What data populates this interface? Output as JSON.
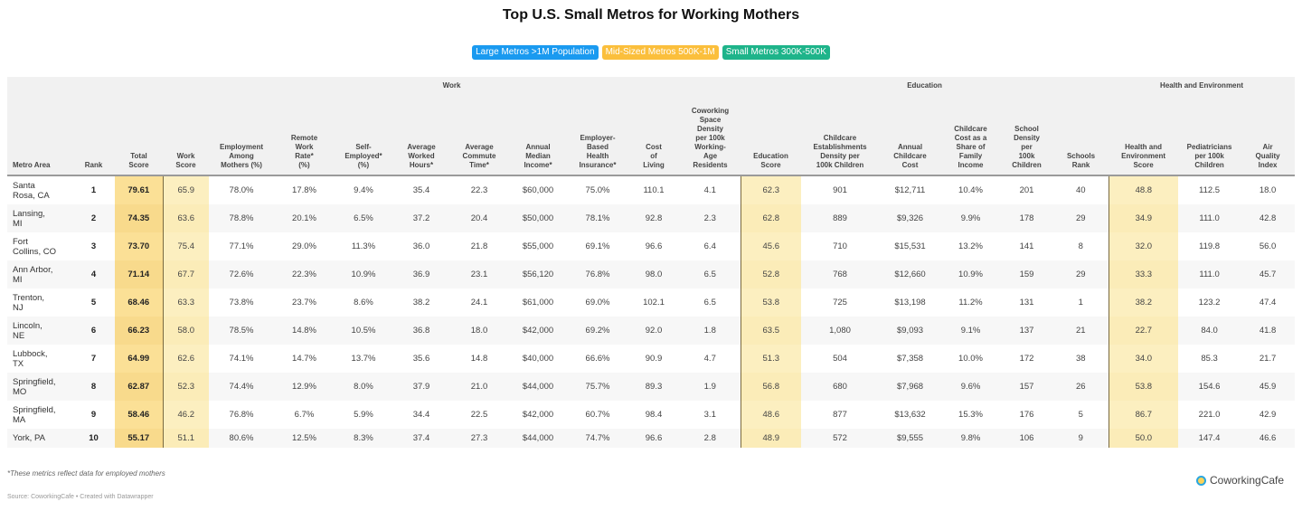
{
  "title": "Top U.S. Small Metros for Working Mothers",
  "legend": [
    {
      "label": "Large Metros >1M Population",
      "color": "#1a9af0"
    },
    {
      "label": "Mid-Sized Metros 500K-1M",
      "color": "#fbbf3c"
    },
    {
      "label": "Small Metros 300K-500K",
      "color": "#1eb48a"
    }
  ],
  "colors": {
    "total_score_highlight": "#fbe096",
    "sub_score_highlight": "#fcefc0",
    "header_bg": "#f1f1f1"
  },
  "chart_data": {
    "type": "table",
    "title": "Top U.S. Small Metros for Working Mothers",
    "groups": [
      {
        "label": "",
        "span": 3
      },
      {
        "label": "Work",
        "span": 10
      },
      {
        "label": "Education",
        "span": 6
      },
      {
        "label": "Health and Environment",
        "span": 3
      }
    ],
    "columns": [
      "Metro Area",
      "Rank",
      "Total\nScore",
      "Work\nScore",
      "Employment\nAmong\nMothers (%)",
      "Remote\nWork\nRate*\n(%)",
      "Self-\nEmployed*\n(%)",
      "Average\nWorked\nHours*",
      "Average\nCommute\nTime*",
      "Annual\nMedian\nIncome*",
      "Employer-\nBased\nHealth\nInsurance*",
      "Cost\nof\nLiving",
      "Coworking\nSpace\nDensity\nper 100k\nWorking-\nAge\nResidents",
      "Education\nScore",
      "Childcare\nEstablishments\nDensity per\n100k Children",
      "Annual\nChildcare\nCost",
      "Childcare\nCost as a\nShare of\nFamily\nIncome",
      "School\nDensity\nper\n100k\nChildren",
      "Schools\nRank",
      "Health and\nEnvironment\nScore",
      "Pediatricians\nper 100k\nChildren",
      "Air\nQuality\nIndex"
    ],
    "rows": [
      [
        "Santa\nRosa, CA",
        "1",
        "79.61",
        "65.9",
        "78.0%",
        "17.8%",
        "9.4%",
        "35.4",
        "22.3",
        "$60,000",
        "75.0%",
        "110.1",
        "4.1",
        "62.3",
        "901",
        "$12,711",
        "10.4%",
        "201",
        "40",
        "48.8",
        "112.5",
        "18.0"
      ],
      [
        "Lansing,\nMI",
        "2",
        "74.35",
        "63.6",
        "78.8%",
        "20.1%",
        "6.5%",
        "37.2",
        "20.4",
        "$50,000",
        "78.1%",
        "92.8",
        "2.3",
        "62.8",
        "889",
        "$9,326",
        "9.9%",
        "178",
        "29",
        "34.9",
        "111.0",
        "42.8"
      ],
      [
        "Fort\nCollins, CO",
        "3",
        "73.70",
        "75.4",
        "77.1%",
        "29.0%",
        "11.3%",
        "36.0",
        "21.8",
        "$55,000",
        "69.1%",
        "96.6",
        "6.4",
        "45.6",
        "710",
        "$15,531",
        "13.2%",
        "141",
        "8",
        "32.0",
        "119.8",
        "56.0"
      ],
      [
        "Ann Arbor,\nMI",
        "4",
        "71.14",
        "67.7",
        "72.6%",
        "22.3%",
        "10.9%",
        "36.9",
        "23.1",
        "$56,120",
        "76.8%",
        "98.0",
        "6.5",
        "52.8",
        "768",
        "$12,660",
        "10.9%",
        "159",
        "29",
        "33.3",
        "111.0",
        "45.7"
      ],
      [
        "Trenton,\nNJ",
        "5",
        "68.46",
        "63.3",
        "73.8%",
        "23.7%",
        "8.6%",
        "38.2",
        "24.1",
        "$61,000",
        "69.0%",
        "102.1",
        "6.5",
        "53.8",
        "725",
        "$13,198",
        "11.2%",
        "131",
        "1",
        "38.2",
        "123.2",
        "47.4"
      ],
      [
        "Lincoln,\nNE",
        "6",
        "66.23",
        "58.0",
        "78.5%",
        "14.8%",
        "10.5%",
        "36.8",
        "18.0",
        "$42,000",
        "69.2%",
        "92.0",
        "1.8",
        "63.5",
        "1,080",
        "$9,093",
        "9.1%",
        "137",
        "21",
        "22.7",
        "84.0",
        "41.8"
      ],
      [
        "Lubbock,\nTX",
        "7",
        "64.99",
        "62.6",
        "74.1%",
        "14.7%",
        "13.7%",
        "35.6",
        "14.8",
        "$40,000",
        "66.6%",
        "90.9",
        "4.7",
        "51.3",
        "504",
        "$7,358",
        "10.0%",
        "172",
        "38",
        "34.0",
        "85.3",
        "21.7"
      ],
      [
        "Springfield,\nMO",
        "8",
        "62.87",
        "52.3",
        "74.4%",
        "12.9%",
        "8.0%",
        "37.9",
        "21.0",
        "$44,000",
        "75.7%",
        "89.3",
        "1.9",
        "56.8",
        "680",
        "$7,968",
        "9.6%",
        "157",
        "26",
        "53.8",
        "154.6",
        "45.9"
      ],
      [
        "Springfield,\nMA",
        "9",
        "58.46",
        "46.2",
        "76.8%",
        "6.7%",
        "5.9%",
        "34.4",
        "22.5",
        "$42,000",
        "60.7%",
        "98.4",
        "3.1",
        "48.6",
        "877",
        "$13,632",
        "15.3%",
        "176",
        "5",
        "86.7",
        "221.0",
        "42.9"
      ],
      [
        "York, PA",
        "10",
        "55.17",
        "51.1",
        "80.6%",
        "12.5%",
        "8.3%",
        "37.4",
        "27.3",
        "$44,000",
        "74.7%",
        "96.6",
        "2.8",
        "48.9",
        "572",
        "$9,555",
        "9.8%",
        "106",
        "9",
        "50.0",
        "147.4",
        "46.6"
      ]
    ]
  },
  "footer": {
    "note": "*These metrics reflect data for employed mothers",
    "source": "Source: CoworkingCafe • Created with Datawrapper",
    "logo": "CoworkingCafe"
  }
}
